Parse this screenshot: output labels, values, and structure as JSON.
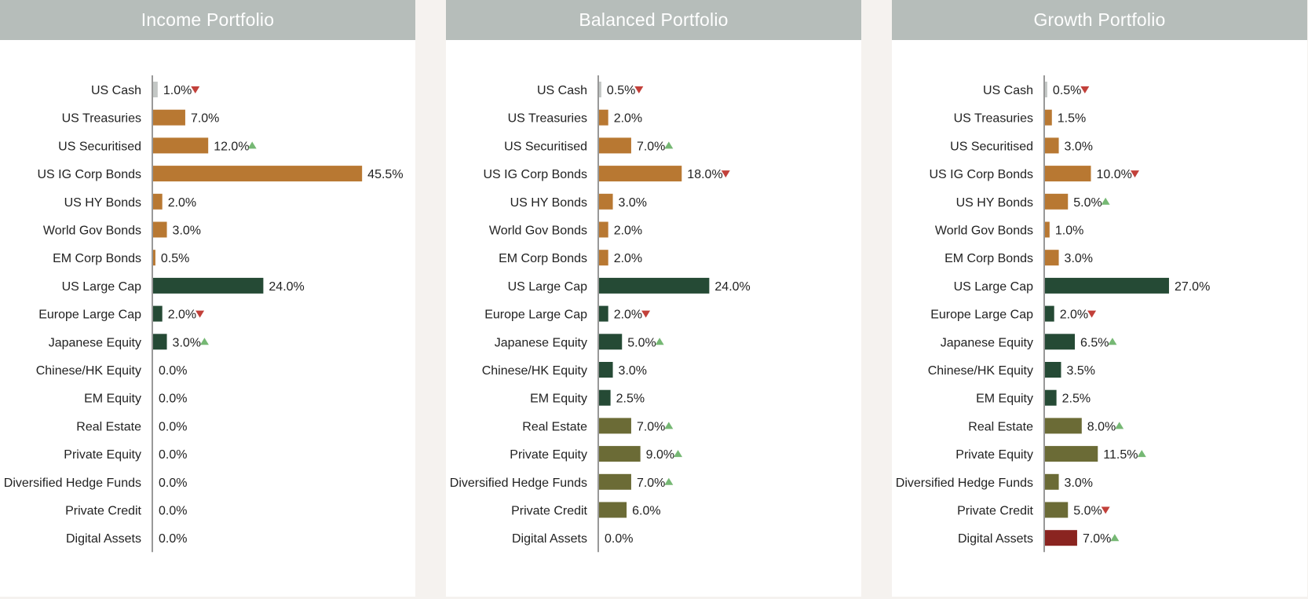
{
  "colors": {
    "cash": "#c3c7c5",
    "fixed_income": "#b87832",
    "equity": "#254a35",
    "alternatives": "#6b6b36",
    "digital": "#8a2420",
    "up_arrow": "#76b874",
    "down_arrow": "#c2403a",
    "axis": "#555555"
  },
  "categories": [
    "US Cash",
    "US Treasuries",
    "US Securitised",
    "US IG Corp Bonds",
    "US HY Bonds",
    "World Gov Bonds",
    "EM Corp Bonds",
    "US Large Cap",
    "Europe Large Cap",
    "Japanese Equity",
    "Chinese/HK Equity",
    "EM Equity",
    "Real Estate",
    "Private Equity",
    "Diversified Hedge Funds",
    "Private Credit",
    "Digital Assets"
  ],
  "category_groups": [
    "cash",
    "fixed_income",
    "fixed_income",
    "fixed_income",
    "fixed_income",
    "fixed_income",
    "fixed_income",
    "equity",
    "equity",
    "equity",
    "equity",
    "equity",
    "alternatives",
    "alternatives",
    "alternatives",
    "alternatives",
    "digital"
  ],
  "chart_data": [
    {
      "type": "bar",
      "orientation": "horizontal",
      "title": "Income Portfolio",
      "values": [
        1.0,
        7.0,
        12.0,
        45.5,
        2.0,
        3.0,
        0.5,
        24.0,
        2.0,
        3.0,
        0.0,
        0.0,
        0.0,
        0.0,
        0.0,
        0.0,
        0.0
      ],
      "labels": [
        "1.0%",
        "7.0%",
        "12.0%",
        "45.5%",
        "2.0%",
        "3.0%",
        "0.5%",
        "24.0%",
        "2.0%",
        "3.0%",
        "0.0%",
        "0.0%",
        "0.0%",
        "0.0%",
        "0.0%",
        "0.0%",
        "0.0%"
      ],
      "changes": [
        "down",
        "",
        "up",
        "",
        "",
        "",
        "",
        "",
        "down",
        "up",
        "",
        "",
        "",
        "",
        "",
        "",
        ""
      ]
    },
    {
      "type": "bar",
      "orientation": "horizontal",
      "title": "Balanced Portfolio",
      "values": [
        0.5,
        2.0,
        7.0,
        18.0,
        3.0,
        2.0,
        2.0,
        24.0,
        2.0,
        5.0,
        3.0,
        2.5,
        7.0,
        9.0,
        7.0,
        6.0,
        0.0
      ],
      "labels": [
        "0.5%",
        "2.0%",
        "7.0%",
        "18.0%",
        "3.0%",
        "2.0%",
        "2.0%",
        "24.0%",
        "2.0%",
        "5.0%",
        "3.0%",
        "2.5%",
        "7.0%",
        "9.0%",
        "7.0%",
        "6.0%",
        "0.0%"
      ],
      "changes": [
        "down",
        "",
        "up",
        "down",
        "",
        "",
        "",
        "",
        "down",
        "up",
        "",
        "",
        "up",
        "up",
        "up",
        "",
        ""
      ]
    },
    {
      "type": "bar",
      "orientation": "horizontal",
      "title": "Growth Portfolio",
      "values": [
        0.5,
        1.5,
        3.0,
        10.0,
        5.0,
        1.0,
        3.0,
        27.0,
        2.0,
        6.5,
        3.5,
        2.5,
        8.0,
        11.5,
        3.0,
        5.0,
        7.0
      ],
      "labels": [
        "0.5%",
        "1.5%",
        "3.0%",
        "10.0%",
        "5.0%",
        "1.0%",
        "3.0%",
        "27.0%",
        "2.0%",
        "6.5%",
        "3.5%",
        "2.5%",
        "8.0%",
        "11.5%",
        "3.0%",
        "5.0%",
        "7.0%"
      ],
      "changes": [
        "down",
        "",
        "",
        "down",
        "up",
        "",
        "",
        "",
        "down",
        "up",
        "",
        "",
        "up",
        "up",
        "",
        "down",
        "up"
      ]
    }
  ]
}
